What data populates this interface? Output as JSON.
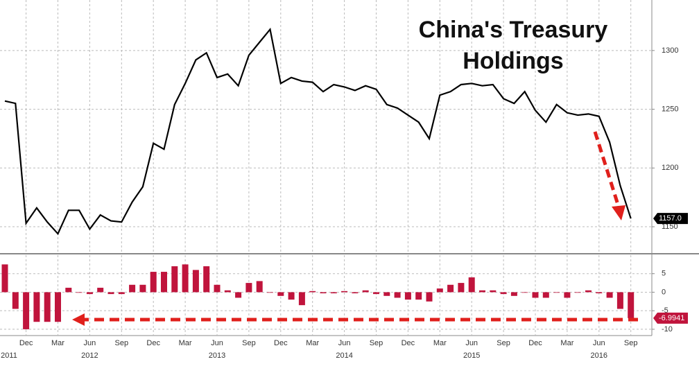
{
  "chart_data": [
    {
      "type": "line",
      "title": [
        "China's Treasury",
        "Holdings"
      ],
      "x": [
        "2011-10",
        "2011-11",
        "2011-12",
        "2012-01",
        "2012-02",
        "2012-03",
        "2012-04",
        "2012-05",
        "2012-06",
        "2012-07",
        "2012-08",
        "2012-09",
        "2012-10",
        "2012-11",
        "2012-12",
        "2013-01",
        "2013-02",
        "2013-03",
        "2013-04",
        "2013-05",
        "2013-06",
        "2013-07",
        "2013-08",
        "2013-09",
        "2013-10",
        "2013-11",
        "2013-12",
        "2014-01",
        "2014-02",
        "2014-03",
        "2014-04",
        "2014-05",
        "2014-06",
        "2014-07",
        "2014-08",
        "2014-09",
        "2014-10",
        "2014-11",
        "2014-12",
        "2015-01",
        "2015-02",
        "2015-03",
        "2015-04",
        "2015-05",
        "2015-06",
        "2015-07",
        "2015-08",
        "2015-09",
        "2015-10",
        "2015-11",
        "2015-12",
        "2016-01",
        "2016-02",
        "2016-03",
        "2016-04",
        "2016-05",
        "2016-06",
        "2016-07",
        "2016-08",
        "2016-09"
      ],
      "series": [
        {
          "color": "#000000",
          "values": [
            1257,
            1255,
            1153,
            1166,
            1154,
            1144,
            1164,
            1164,
            1148,
            1160,
            1155,
            1154,
            1171,
            1184,
            1221,
            1216,
            1254,
            1272,
            1292,
            1298,
            1277,
            1280,
            1270,
            1296,
            1307,
            1318,
            1272,
            1277,
            1274,
            1273,
            1265,
            1271,
            1269,
            1266,
            1270,
            1267,
            1254,
            1251,
            1245,
            1239,
            1225,
            1262,
            1265,
            1271,
            1272,
            1270,
            1271,
            1259,
            1255,
            1265,
            1249,
            1239,
            1254,
            1247,
            1245,
            1246,
            1244,
            1222,
            1185,
            1157
          ],
          "value_labels": [
            null,
            null,
            null,
            null,
            null,
            null,
            null,
            null,
            null,
            null,
            null,
            null,
            null,
            null,
            null,
            null,
            null,
            null,
            null,
            null,
            null,
            null,
            null,
            null,
            null,
            null,
            null,
            null,
            null,
            null,
            null,
            null,
            null,
            null,
            null,
            null,
            null,
            null,
            null,
            null,
            null,
            null,
            null,
            null,
            null,
            null,
            null,
            null,
            null,
            null,
            null,
            null,
            null,
            null,
            null,
            null,
            null,
            null,
            null,
            "1157.0"
          ]
        }
      ],
      "ylim": [
        1127,
        1343
      ],
      "yticks": [
        1150,
        1200,
        1250,
        1300
      ],
      "grid": true
    },
    {
      "type": "bar",
      "x": [
        "2011-10",
        "2011-11",
        "2011-12",
        "2012-01",
        "2012-02",
        "2012-03",
        "2012-04",
        "2012-05",
        "2012-06",
        "2012-07",
        "2012-08",
        "2012-09",
        "2012-10",
        "2012-11",
        "2012-12",
        "2013-01",
        "2013-02",
        "2013-03",
        "2013-04",
        "2013-05",
        "2013-06",
        "2013-07",
        "2013-08",
        "2013-09",
        "2013-10",
        "2013-11",
        "2013-12",
        "2014-01",
        "2014-02",
        "2014-03",
        "2014-04",
        "2014-05",
        "2014-06",
        "2014-07",
        "2014-08",
        "2014-09",
        "2014-10",
        "2014-11",
        "2014-12",
        "2015-01",
        "2015-02",
        "2015-03",
        "2015-04",
        "2015-05",
        "2015-06",
        "2015-07",
        "2015-08",
        "2015-09",
        "2015-10",
        "2015-11",
        "2015-12",
        "2016-01",
        "2016-02",
        "2016-03",
        "2016-04",
        "2016-05",
        "2016-06",
        "2016-07",
        "2016-08",
        "2016-09"
      ],
      "series": [
        {
          "color": "#c0143c",
          "values": [
            7.5,
            -4.5,
            -10,
            -8,
            -8,
            -8,
            1.2,
            0,
            -0.5,
            1.2,
            -0.5,
            -0.5,
            2,
            2,
            5.5,
            5.5,
            7,
            7.5,
            6,
            7,
            2,
            0.5,
            -1.5,
            2.5,
            3,
            0,
            -1,
            -2,
            -3.5,
            0.3,
            -0.3,
            -0.3,
            0.3,
            -0.3,
            0.5,
            -0.5,
            -1,
            -1.5,
            -2,
            -2,
            -2.5,
            1,
            2,
            2.5,
            4,
            0.5,
            0.5,
            -0.5,
            -1,
            0,
            -1.5,
            -1.5,
            0,
            -1.5,
            0,
            0.5,
            -0.3,
            -1.5,
            -4.5,
            -6.9941
          ],
          "value_labels": [
            null,
            null,
            null,
            null,
            null,
            null,
            null,
            null,
            null,
            null,
            null,
            null,
            null,
            null,
            null,
            null,
            null,
            null,
            null,
            null,
            null,
            null,
            null,
            null,
            null,
            null,
            null,
            null,
            null,
            null,
            null,
            null,
            null,
            null,
            null,
            null,
            null,
            null,
            null,
            null,
            null,
            null,
            null,
            null,
            null,
            null,
            null,
            null,
            null,
            null,
            null,
            null,
            null,
            null,
            null,
            null,
            null,
            null,
            null,
            "-6.9941"
          ]
        }
      ],
      "ylim": [
        -11.7,
        10
      ],
      "yticks": [
        5,
        0,
        -5,
        -10
      ],
      "grid": true,
      "xticks": [
        {
          "value": "2011-12",
          "label": "Dec"
        },
        {
          "value": "2012-03",
          "label": "Mar"
        },
        {
          "value": "2012-06",
          "label": "Jun"
        },
        {
          "value": "2012-09",
          "label": "Sep"
        },
        {
          "value": "2012-12",
          "label": "Dec"
        },
        {
          "value": "2013-03",
          "label": "Mar"
        },
        {
          "value": "2013-06",
          "label": "Jun"
        },
        {
          "value": "2013-09",
          "label": "Sep"
        },
        {
          "value": "2013-12",
          "label": "Dec"
        },
        {
          "value": "2014-03",
          "label": "Mar"
        },
        {
          "value": "2014-06",
          "label": "Jun"
        },
        {
          "value": "2014-09",
          "label": "Sep"
        },
        {
          "value": "2014-12",
          "label": "Dec"
        },
        {
          "value": "2015-03",
          "label": "Mar"
        },
        {
          "value": "2015-06",
          "label": "Jun"
        },
        {
          "value": "2015-09",
          "label": "Sep"
        },
        {
          "value": "2015-12",
          "label": "Dec"
        },
        {
          "value": "2016-03",
          "label": "Mar"
        },
        {
          "value": "2016-06",
          "label": "Jun"
        },
        {
          "value": "2016-09",
          "label": "Sep"
        }
      ],
      "year_ticks": [
        {
          "value": "2011-10",
          "label": "2011"
        },
        {
          "value": "2012-06",
          "label": "2012"
        },
        {
          "value": "2013-06",
          "label": "2013"
        },
        {
          "value": "2014-06",
          "label": "2014"
        },
        {
          "value": "2015-06",
          "label": "2015"
        },
        {
          "value": "2016-06",
          "label": "2016"
        }
      ]
    }
  ]
}
